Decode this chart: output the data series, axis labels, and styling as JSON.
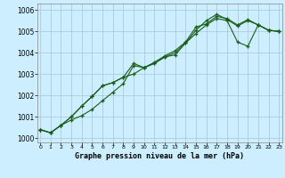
{
  "background_color": "#cceeff",
  "grid_color": "#aaccdd",
  "line_color": "#1a5c1a",
  "ylim": [
    999.8,
    1006.3
  ],
  "xlim": [
    -0.3,
    23.3
  ],
  "yticks": [
    1000,
    1001,
    1002,
    1003,
    1004,
    1005,
    1006
  ],
  "xticks": [
    0,
    1,
    2,
    3,
    4,
    5,
    6,
    7,
    8,
    9,
    10,
    11,
    12,
    13,
    14,
    15,
    16,
    17,
    18,
    19,
    20,
    21,
    22,
    23
  ],
  "xlabel": "Graphe pression niveau de la mer (hPa)",
  "series": [
    [
      1000.4,
      1000.25,
      1000.6,
      1000.85,
      1001.05,
      1001.35,
      1001.75,
      1002.15,
      1002.55,
      1003.4,
      1003.3,
      1003.55,
      1003.85,
      1004.1,
      1004.5,
      1005.2,
      1005.35,
      1005.7,
      1005.6,
      1005.3,
      1005.55,
      1005.3,
      1005.05,
      1005.0
    ],
    [
      1000.4,
      1000.25,
      1000.6,
      1001.0,
      1001.5,
      1001.95,
      1002.45,
      1002.6,
      1002.85,
      1003.5,
      1003.3,
      1003.5,
      1003.8,
      1004.0,
      1004.45,
      1005.05,
      1005.5,
      1005.8,
      1005.55,
      1005.25,
      1005.5,
      1005.3,
      1005.05,
      1005.0
    ],
    [
      1000.4,
      1000.25,
      1000.6,
      1001.0,
      1001.5,
      1001.95,
      1002.45,
      1002.6,
      1002.85,
      1003.0,
      1003.3,
      1003.5,
      1003.8,
      1003.9,
      1004.45,
      1004.9,
      1005.3,
      1005.6,
      1005.5,
      1004.5,
      1004.3,
      1005.3,
      1005.05,
      1005.0
    ]
  ]
}
